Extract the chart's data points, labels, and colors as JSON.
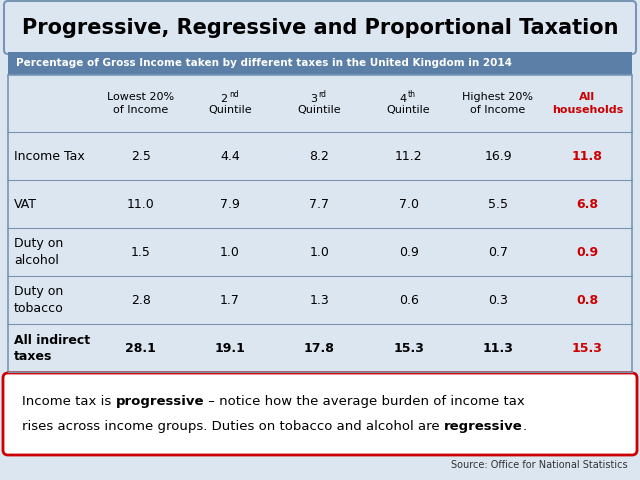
{
  "title": "Progressive, Regressive and Proportional Taxation",
  "subtitle": "Percentage of Gross Income taken by different taxes in the United Kingdom in 2014",
  "col_headers_plain": [
    "Lowest 20%\nof Income",
    "Quintile",
    "Quintile",
    "Quintile",
    "Highest 20%\nof Income",
    "All\nhouseholds"
  ],
  "col_header_prefixes": [
    "",
    "2",
    "3",
    "4",
    "",
    ""
  ],
  "col_header_supers": [
    "",
    "nd",
    "rd",
    "th",
    "",
    ""
  ],
  "row_labels": [
    "Income Tax",
    "VAT",
    "Duty on\nalcohol",
    "Duty on\ntobacco",
    "All indirect\ntaxes"
  ],
  "row_bold": [
    false,
    false,
    false,
    false,
    true
  ],
  "data": [
    [
      "2.5",
      "4.4",
      "8.2",
      "11.2",
      "16.9",
      "11.8"
    ],
    [
      "11.0",
      "7.9",
      "7.7",
      "7.0",
      "5.5",
      "6.8"
    ],
    [
      "1.5",
      "1.0",
      "1.0",
      "0.9",
      "0.7",
      "0.9"
    ],
    [
      "2.8",
      "1.7",
      "1.3",
      "0.6",
      "0.3",
      "0.8"
    ],
    [
      "28.1",
      "19.1",
      "17.8",
      "15.3",
      "11.3",
      "15.3"
    ]
  ],
  "source": "Source: Office for National Statistics",
  "outer_bg": "#dce6f1",
  "title_box_bg": "#dce6f1",
  "title_box_border": "#7896b4",
  "header_bg": "#5b7fa6",
  "header_text": "#ffffff",
  "last_col_color": "#cc0000",
  "table_bg": "#dce6f1",
  "row_line_color": "#7896b4",
  "footnote_border_color": "#cc0000",
  "footnote_bg": "#ffffff",
  "data_font_size": 9,
  "header_font_size": 8,
  "title_font_size": 15,
  "subtitle_font_size": 7.5,
  "footnote_font_size": 9.5,
  "source_font_size": 7
}
